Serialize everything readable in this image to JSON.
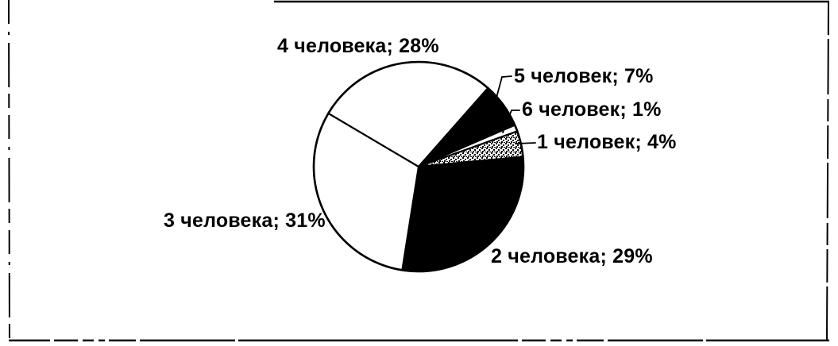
{
  "figure": {
    "background": "#ffffff",
    "frame_color": "#000000"
  },
  "chart_data": {
    "type": "pie",
    "title": "",
    "legend": "none",
    "data_label_format": "<category>; <percent>%",
    "rotation_deg": 70.2,
    "total_percent": 100,
    "slices": [
      {
        "label": "1 человек",
        "value_percent": 4,
        "fill": "stipple",
        "display": "1 человек; 4%"
      },
      {
        "label": "2 человека",
        "value_percent": 29,
        "fill": "black",
        "display": "2 человека; 29%"
      },
      {
        "label": "3 человека",
        "value_percent": 31,
        "fill": "white",
        "display": "3 человека; 31%"
      },
      {
        "label": "4 человека",
        "value_percent": 28,
        "fill": "white",
        "display": "4 человека; 28%"
      },
      {
        "label": "5 человек",
        "value_percent": 7,
        "fill": "black",
        "display": "5 человек; 7%"
      },
      {
        "label": "6 человек",
        "value_percent": 1,
        "fill": "white",
        "display": "6 человек; 1%"
      }
    ],
    "palette": {
      "foreground": "#000000",
      "background": "#ffffff"
    }
  }
}
